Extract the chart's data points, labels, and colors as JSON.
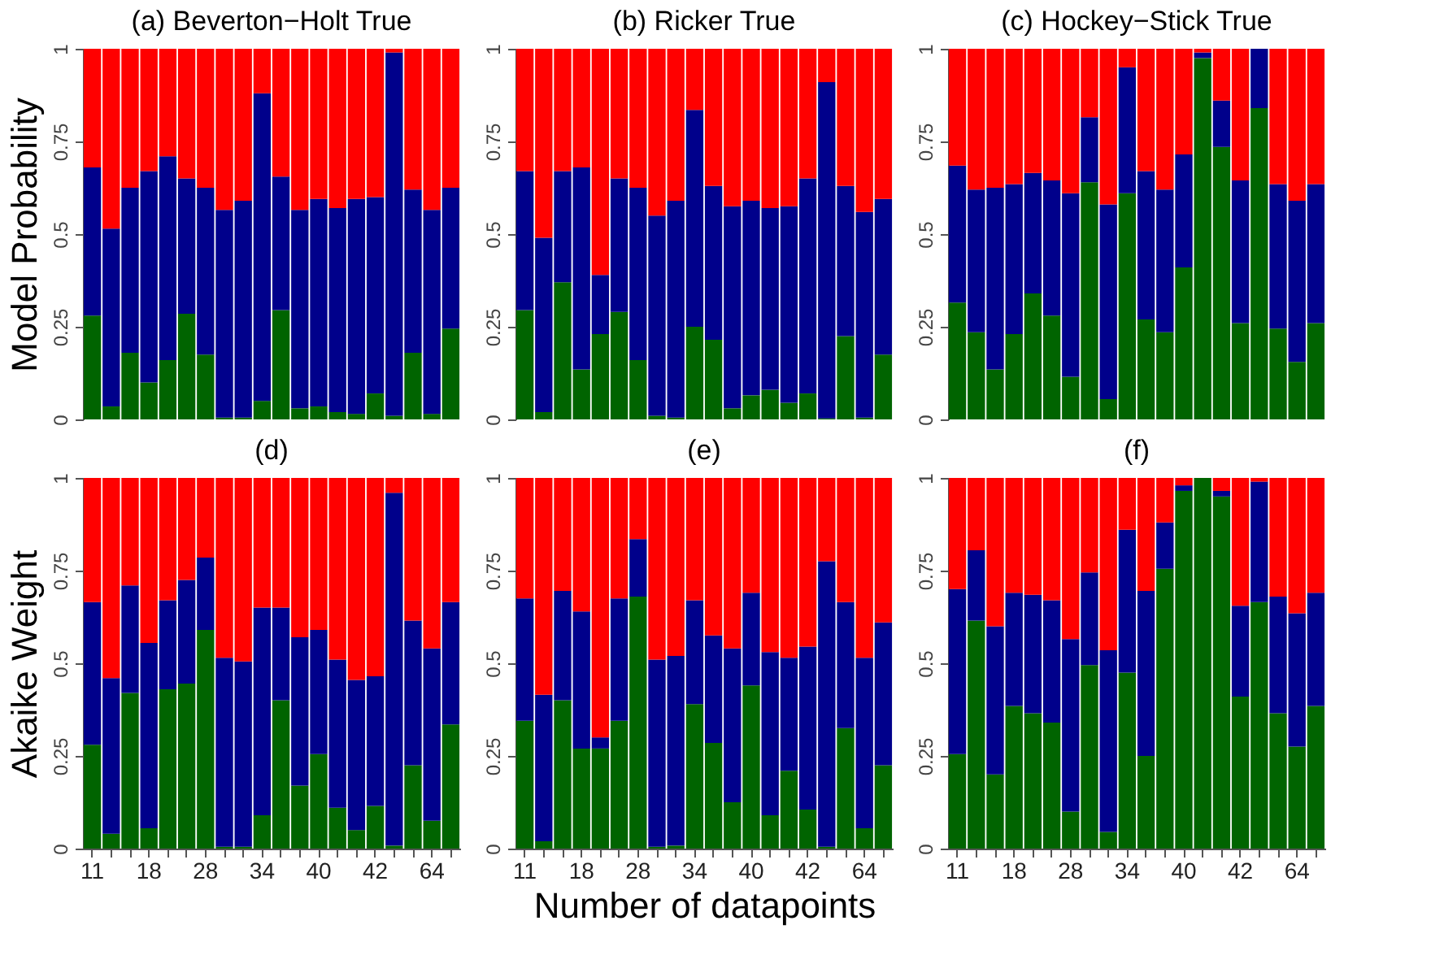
{
  "chart_data": [
    {
      "type": "bar",
      "stacked": true,
      "title": "(a) Beverton−Holt True",
      "ylabel": "Model Probability",
      "tick_labels": "y",
      "categories": [
        "11",
        null,
        null,
        "18",
        null,
        null,
        "28",
        null,
        null,
        "34",
        null,
        null,
        "40",
        null,
        null,
        "42",
        null,
        null,
        "64",
        null
      ],
      "ylim": [
        0,
        1
      ],
      "yticks": [
        0,
        0.25,
        0.5,
        0.75,
        1
      ],
      "series": [
        {
          "color": "#006400",
          "values": [
            0.28,
            0.035,
            0.18,
            0.1,
            0.16,
            0.285,
            0.175,
            0.005,
            0.005,
            0.05,
            0.295,
            0.03,
            0.035,
            0.02,
            0.015,
            0.07,
            0.01,
            0.18,
            0.015,
            0.245
          ]
        },
        {
          "color": "#00008b",
          "values": [
            0.4,
            0.48,
            0.445,
            0.57,
            0.55,
            0.365,
            0.45,
            0.56,
            0.585,
            0.83,
            0.36,
            0.535,
            0.56,
            0.55,
            0.58,
            0.53,
            0.98,
            0.44,
            0.55,
            0.38
          ]
        },
        {
          "color": "#ff0000",
          "values": [
            0.32,
            0.485,
            0.375,
            0.33,
            0.29,
            0.35,
            0.375,
            0.435,
            0.41,
            0.12,
            0.345,
            0.435,
            0.405,
            0.43,
            0.405,
            0.4,
            0.01,
            0.38,
            0.435,
            0.375
          ]
        }
      ]
    },
    {
      "type": "bar",
      "stacked": true,
      "title": "(b) Ricker True",
      "tick_labels": "y",
      "categories": [
        "11",
        null,
        null,
        "18",
        null,
        null,
        "28",
        null,
        null,
        "34",
        null,
        null,
        "40",
        null,
        null,
        "42",
        null,
        null,
        "64",
        null
      ],
      "ylim": [
        0,
        1
      ],
      "yticks": [
        0,
        0.25,
        0.5,
        0.75,
        1
      ],
      "series": [
        {
          "color": "#006400",
          "values": [
            0.295,
            0.02,
            0.37,
            0.135,
            0.23,
            0.29,
            0.16,
            0.01,
            0.005,
            0.25,
            0.215,
            0.03,
            0.065,
            0.08,
            0.045,
            0.07,
            0.003,
            0.225,
            0.005,
            0.175
          ]
        },
        {
          "color": "#00008b",
          "values": [
            0.375,
            0.47,
            0.3,
            0.545,
            0.16,
            0.36,
            0.465,
            0.54,
            0.585,
            0.585,
            0.415,
            0.545,
            0.525,
            0.49,
            0.53,
            0.58,
            0.907,
            0.405,
            0.555,
            0.42
          ]
        },
        {
          "color": "#ff0000",
          "values": [
            0.33,
            0.51,
            0.33,
            0.32,
            0.61,
            0.35,
            0.375,
            0.45,
            0.41,
            0.165,
            0.37,
            0.425,
            0.41,
            0.43,
            0.425,
            0.35,
            0.09,
            0.37,
            0.44,
            0.405
          ]
        }
      ]
    },
    {
      "type": "bar",
      "stacked": true,
      "title": "(c) Hockey−Stick True",
      "tick_labels": "y",
      "categories": [
        "11",
        null,
        null,
        "18",
        null,
        null,
        "28",
        null,
        null,
        "34",
        null,
        null,
        "40",
        null,
        null,
        "42",
        null,
        null,
        "64",
        null
      ],
      "ylim": [
        0,
        1
      ],
      "yticks": [
        0,
        0.25,
        0.5,
        0.75,
        1
      ],
      "series": [
        {
          "color": "#006400",
          "values": [
            0.315,
            0.235,
            0.135,
            0.23,
            0.34,
            0.28,
            0.115,
            0.64,
            0.055,
            0.61,
            0.27,
            0.235,
            0.41,
            0.975,
            0.735,
            0.26,
            0.84,
            0.245,
            0.155,
            0.26
          ]
        },
        {
          "color": "#00008b",
          "values": [
            0.37,
            0.385,
            0.49,
            0.405,
            0.325,
            0.365,
            0.495,
            0.175,
            0.525,
            0.34,
            0.4,
            0.385,
            0.305,
            0.015,
            0.125,
            0.385,
            0.16,
            0.39,
            0.435,
            0.375
          ]
        },
        {
          "color": "#ff0000",
          "values": [
            0.315,
            0.38,
            0.375,
            0.365,
            0.335,
            0.355,
            0.39,
            0.185,
            0.42,
            0.05,
            0.33,
            0.38,
            0.285,
            0.01,
            0.14,
            0.355,
            0,
            0.365,
            0.41,
            0.365
          ]
        }
      ]
    },
    {
      "type": "bar",
      "stacked": true,
      "title": "(d)",
      "ylabel": "Akaike Weight",
      "categories": [
        "11",
        null,
        null,
        "18",
        null,
        null,
        "28",
        null,
        null,
        "34",
        null,
        null,
        "40",
        null,
        null,
        "42",
        null,
        null,
        "64",
        null
      ],
      "ylim": [
        0,
        1
      ],
      "yticks": [
        0,
        0.25,
        0.5,
        0.75,
        1
      ],
      "series": [
        {
          "color": "#006400",
          "values": [
            0.28,
            0.04,
            0.42,
            0.055,
            0.43,
            0.445,
            0.59,
            0.005,
            0.005,
            0.09,
            0.4,
            0.17,
            0.255,
            0.11,
            0.05,
            0.115,
            0.008,
            0.225,
            0.075,
            0.335
          ]
        },
        {
          "color": "#00008b",
          "values": [
            0.385,
            0.42,
            0.29,
            0.5,
            0.24,
            0.28,
            0.195,
            0.51,
            0.5,
            0.56,
            0.25,
            0.4,
            0.335,
            0.4,
            0.405,
            0.35,
            0.952,
            0.39,
            0.465,
            0.33
          ]
        },
        {
          "color": "#ff0000",
          "values": [
            0.335,
            0.54,
            0.29,
            0.445,
            0.33,
            0.275,
            0.215,
            0.485,
            0.495,
            0.35,
            0.35,
            0.43,
            0.41,
            0.49,
            0.545,
            0.535,
            0.04,
            0.385,
            0.46,
            0.335
          ]
        }
      ]
    },
    {
      "type": "bar",
      "stacked": true,
      "title": "(e)",
      "xlabel": "Number of datapoints",
      "categories": [
        "11",
        null,
        null,
        "18",
        null,
        null,
        "28",
        null,
        null,
        "34",
        null,
        null,
        "40",
        null,
        null,
        "42",
        null,
        null,
        "64",
        null
      ],
      "ylim": [
        0,
        1
      ],
      "yticks": [
        0,
        0.25,
        0.5,
        0.75,
        1
      ],
      "series": [
        {
          "color": "#006400",
          "values": [
            0.345,
            0.02,
            0.4,
            0.27,
            0.27,
            0.345,
            0.68,
            0.005,
            0.008,
            0.39,
            0.285,
            0.125,
            0.44,
            0.09,
            0.21,
            0.105,
            0.005,
            0.325,
            0.055,
            0.225
          ]
        },
        {
          "color": "#00008b",
          "values": [
            0.33,
            0.395,
            0.295,
            0.37,
            0.03,
            0.33,
            0.155,
            0.505,
            0.512,
            0.28,
            0.29,
            0.415,
            0.25,
            0.44,
            0.305,
            0.44,
            0.77,
            0.34,
            0.46,
            0.385
          ]
        },
        {
          "color": "#ff0000",
          "values": [
            0.325,
            0.585,
            0.305,
            0.36,
            0.7,
            0.325,
            0.165,
            0.49,
            0.48,
            0.33,
            0.425,
            0.46,
            0.31,
            0.47,
            0.485,
            0.455,
            0.225,
            0.335,
            0.485,
            0.39
          ]
        }
      ]
    },
    {
      "type": "bar",
      "stacked": true,
      "title": "(f)",
      "categories": [
        "11",
        null,
        null,
        "18",
        null,
        null,
        "28",
        null,
        null,
        "34",
        null,
        null,
        "40",
        null,
        null,
        "42",
        null,
        null,
        "64",
        null
      ],
      "ylim": [
        0,
        1
      ],
      "yticks": [
        0,
        0.25,
        0.5,
        0.75,
        1
      ],
      "series": [
        {
          "color": "#006400",
          "values": [
            0.255,
            0.615,
            0.2,
            0.385,
            0.365,
            0.34,
            0.1,
            0.495,
            0.045,
            0.475,
            0.25,
            0.755,
            0.965,
            1.0,
            0.95,
            0.41,
            0.665,
            0.365,
            0.275,
            0.385
          ]
        },
        {
          "color": "#00008b",
          "values": [
            0.445,
            0.19,
            0.4,
            0.305,
            0.32,
            0.33,
            0.465,
            0.25,
            0.49,
            0.385,
            0.445,
            0.125,
            0.015,
            0,
            0.015,
            0.245,
            0.325,
            0.315,
            0.36,
            0.305
          ]
        },
        {
          "color": "#ff0000",
          "values": [
            0.3,
            0.195,
            0.4,
            0.31,
            0.315,
            0.33,
            0.435,
            0.255,
            0.465,
            0.14,
            0.305,
            0.12,
            0.02,
            0,
            0.035,
            0.345,
            0.01,
            0.32,
            0.365,
            0.31
          ]
        }
      ]
    }
  ]
}
